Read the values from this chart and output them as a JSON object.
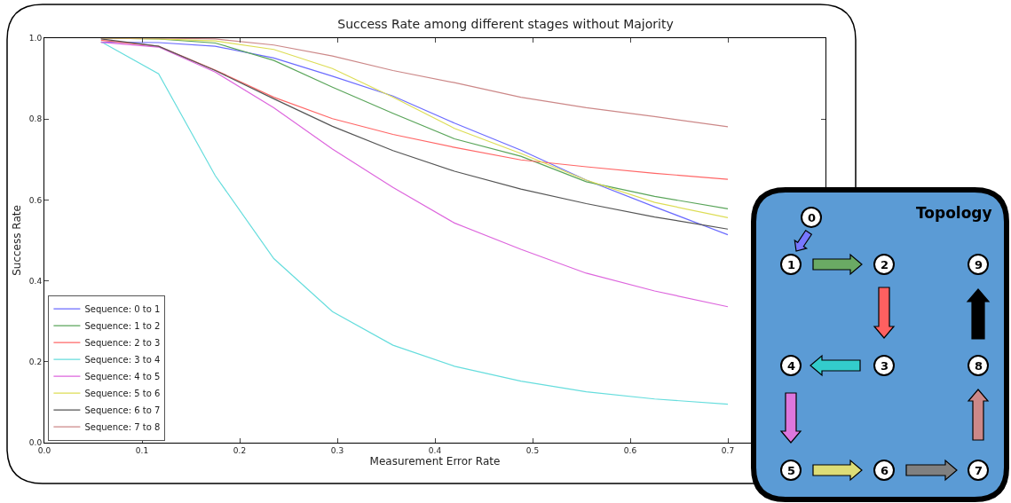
{
  "chart_data": [
    {
      "type": "line",
      "title": "Success Rate among different stages without Majority",
      "xlabel": "Measurement Error Rate",
      "ylabel": "Success Rate",
      "x": [
        0.058,
        0.117,
        0.175,
        0.235,
        0.295,
        0.357,
        0.42,
        0.488,
        0.555,
        0.625,
        0.7
      ],
      "series": [
        {
          "name": "Sequence: 0 to 1",
          "color": "#6b6bff",
          "values": [
            0.99,
            0.989,
            0.98,
            0.951,
            0.906,
            0.857,
            0.79,
            0.723,
            0.649,
            0.583,
            0.514
          ]
        },
        {
          "name": "Sequence: 1 to 2",
          "color": "#5aa55a",
          "values": [
            1.0,
            0.998,
            0.988,
            0.945,
            0.879,
            0.814,
            0.751,
            0.708,
            0.645,
            0.609,
            0.578
          ]
        },
        {
          "name": "Sequence: 2 to 3",
          "color": "#ff6666",
          "values": [
            0.995,
            0.98,
            0.921,
            0.854,
            0.801,
            0.762,
            0.73,
            0.699,
            0.682,
            0.666,
            0.651
          ]
        },
        {
          "name": "Sequence: 3 to 4",
          "color": "#66dddd",
          "values": [
            0.991,
            0.912,
            0.66,
            0.455,
            0.324,
            0.241,
            0.189,
            0.152,
            0.126,
            0.108,
            0.095
          ]
        },
        {
          "name": "Sequence: 4 to 5",
          "color": "#dd66dd",
          "values": [
            0.99,
            0.978,
            0.916,
            0.828,
            0.726,
            0.631,
            0.543,
            0.478,
            0.419,
            0.375,
            0.336
          ]
        },
        {
          "name": "Sequence: 5 to 6",
          "color": "#dddd55",
          "values": [
            1.0,
            0.998,
            0.993,
            0.972,
            0.925,
            0.854,
            0.777,
            0.715,
            0.649,
            0.594,
            0.556
          ]
        },
        {
          "name": "Sequence: 6 to 7",
          "color": "#555555",
          "values": [
            0.998,
            0.98,
            0.92,
            0.85,
            0.782,
            0.722,
            0.671,
            0.627,
            0.591,
            0.558,
            0.528
          ]
        },
        {
          "name": "Sequence: 7 to 8",
          "color": "#cc8888",
          "values": [
            1.0,
            1.0,
            0.998,
            0.983,
            0.956,
            0.92,
            0.89,
            0.854,
            0.828,
            0.806,
            0.781
          ]
        }
      ],
      "xlim": [
        0,
        0.8
      ],
      "ylim": [
        0,
        1
      ],
      "xticks": [
        {
          "value": 0,
          "label": "0.0"
        },
        0.1,
        0.2,
        0.3,
        0.4,
        0.5,
        0.6,
        0.7
      ],
      "yticks": [
        {
          "value": 0,
          "label": "0.0"
        },
        0.2,
        0.4,
        0.6,
        0.8,
        {
          "value": 1,
          "label": "1.0"
        }
      ],
      "legend": "bottom left",
      "marker": "none",
      "line_style": "solid"
    },
    {
      "type": "other",
      "title": "Topology",
      "annotations": [
        "0",
        "1",
        "2",
        "3",
        "4",
        "5",
        "6",
        "7",
        "8",
        "9"
      ]
    }
  ]
}
